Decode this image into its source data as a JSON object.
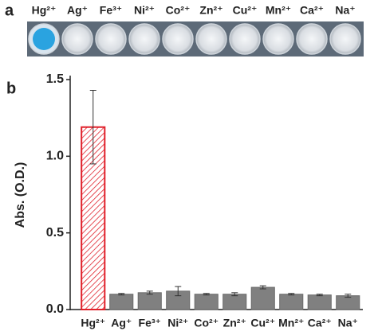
{
  "panel_labels": [
    "a",
    "b"
  ],
  "chart_data": {
    "type": "bar",
    "y_label": "Abs. (O.D.)",
    "categories": [
      "Hg²⁺",
      "Ag⁺",
      "Fe³⁺",
      "Ni²⁺",
      "Co²⁺",
      "Zn²⁺",
      "Cu²⁺",
      "Mn²⁺",
      "Ca²⁺",
      "Na⁺"
    ],
    "values": [
      1.19,
      0.1,
      0.11,
      0.12,
      0.1,
      0.1,
      0.145,
      0.1,
      0.095,
      0.09
    ],
    "errors": [
      0.24,
      0.005,
      0.01,
      0.03,
      0.005,
      0.01,
      0.01,
      0.005,
      0.005,
      0.01
    ],
    "colors": [
      "#e0202a",
      "#808080",
      "#808080",
      "#808080",
      "#808080",
      "#808080",
      "#808080",
      "#808080",
      "#808080",
      "#808080"
    ],
    "hatched": [
      true,
      false,
      false,
      false,
      false,
      false,
      false,
      false,
      false,
      false
    ],
    "ylim": [
      0,
      1.5
    ],
    "yticks": [
      {
        "value": 0,
        "label": "0.0"
      },
      0.5,
      {
        "value": 1,
        "label": "1.0"
      },
      1.5
    ]
  }
}
